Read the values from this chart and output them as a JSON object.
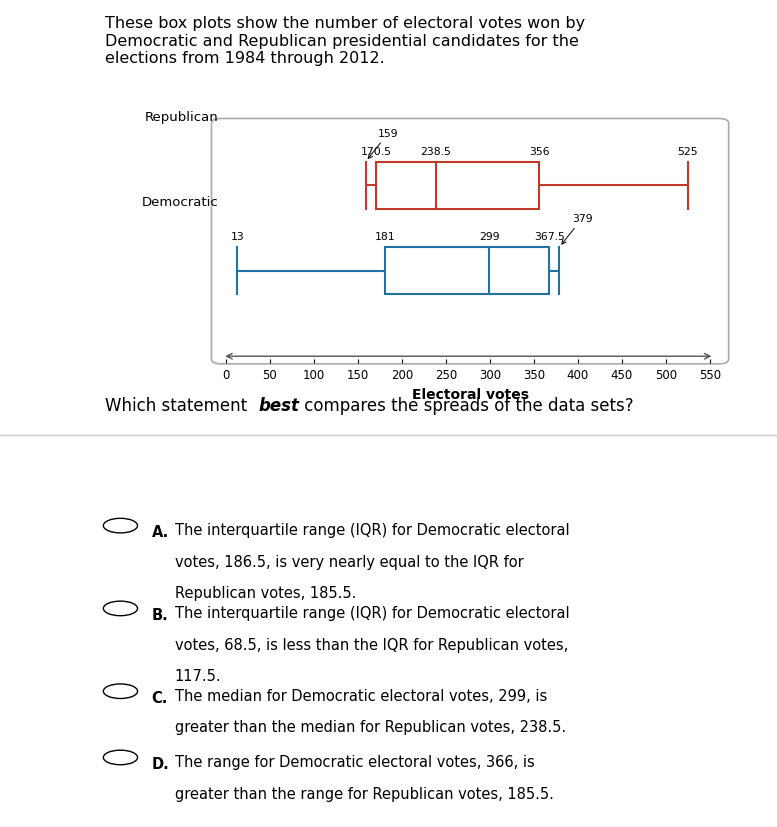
{
  "title_text": "These box plots show the number of electoral votes won by\nDemocratic and Republican presidential candidates for the\nelections from 1984 through 2012.",
  "republican": {
    "min": 159,
    "q1": 170.5,
    "median": 238.5,
    "q3": 356,
    "max": 525,
    "color": "#c0392b",
    "label": "Republican"
  },
  "democratic": {
    "min": 13,
    "q1": 181,
    "median": 299,
    "q3": 367.5,
    "max": 379,
    "color": "#2471a3",
    "label": "Democratic"
  },
  "x_min": 0,
  "x_max": 550,
  "x_ticks": [
    0,
    50,
    100,
    150,
    200,
    250,
    300,
    350,
    400,
    450,
    500,
    550
  ],
  "x_label": "Electoral votes",
  "question_text_parts": [
    "Which statement ",
    "best",
    " compares the spreads of the data sets?"
  ],
  "options": [
    {
      "letter": "A",
      "text": "The interquartile range (IQR) for Democratic electoral votes, 186.5, is very nearly equal to the IQR for Republican votes, 185.5."
    },
    {
      "letter": "B",
      "text": "The interquartile range (IQR) for Democratic electoral votes, 68.5, is less than the IQR for Republican votes, 117.5."
    },
    {
      "letter": "C",
      "text": "The median for Democratic electoral votes, 299, is greater than the median for Republican votes, 238.5."
    },
    {
      "letter": "D",
      "text": "The range for Democratic electoral votes, 366, is greater than the range for Republican votes, 185.5."
    }
  ],
  "fig_width": 7.77,
  "fig_height": 8.28
}
